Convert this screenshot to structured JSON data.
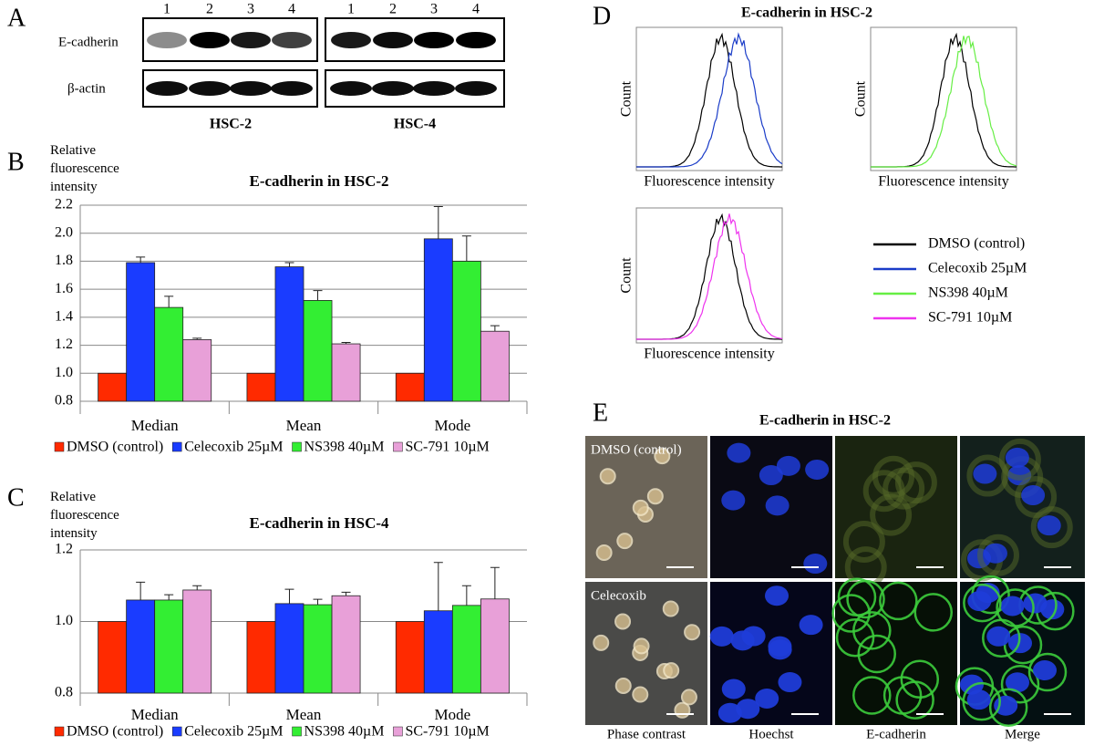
{
  "panel_labels": [
    "A",
    "B",
    "C",
    "D",
    "E"
  ],
  "blot": {
    "lanes": [
      "1",
      "2",
      "3",
      "4"
    ],
    "rows": [
      "E-cadherin",
      "β-actin"
    ],
    "cell_lines": [
      "HSC-2",
      "HSC-4"
    ]
  },
  "chart_data": [
    {
      "type": "bar",
      "title": "E-cadherin in HSC-2",
      "y_label": "Relative fluorescence intensity",
      "categories": [
        "Median",
        "Mean",
        "Mode"
      ],
      "series": [
        {
          "name": "DMSO (control)",
          "color": "#ff2a00",
          "values": [
            1,
            1,
            1
          ]
        },
        {
          "name": "Celecoxib 25µM",
          "color": "#1a3cff",
          "values": [
            1.79,
            1.76,
            1.96
          ],
          "errors": [
            0.04,
            0.03,
            0.23
          ]
        },
        {
          "name": "NS398 40µM",
          "color": "#33ee33",
          "values": [
            1.47,
            1.52,
            1.8
          ],
          "errors": [
            0.08,
            0.07,
            0.18
          ]
        },
        {
          "name": "SC-791 10µM",
          "color": "#e8a0d8",
          "values": [
            1.24,
            1.21,
            1.3
          ],
          "errors": [
            0.01,
            0.01,
            0.04
          ]
        }
      ],
      "ylim": [
        0.8,
        2.2
      ],
      "yticks": [
        0.8,
        {
          "value": 1,
          "label": "1.0"
        },
        1.2,
        1.4,
        1.6,
        1.8,
        {
          "value": 2,
          "label": "2.0"
        },
        2.2
      ],
      "grid": true
    },
    {
      "type": "bar",
      "title": "E-cadherin in HSC-4",
      "y_label": "Relative fluorescence intensity",
      "categories": [
        "Median",
        "Mean",
        "Mode"
      ],
      "series": [
        {
          "name": "DMSO (control)",
          "color": "#ff2a00",
          "values": [
            1,
            1,
            1
          ]
        },
        {
          "name": "Celecoxib 25µM",
          "color": "#1a3cff",
          "values": [
            1.06,
            1.05,
            1.03
          ],
          "errors": [
            0.05,
            0.04,
            0.135
          ]
        },
        {
          "name": "NS398 40µM",
          "color": "#33ee33",
          "values": [
            1.06,
            1.047,
            1.045
          ],
          "errors": [
            0.015,
            0.015,
            0.055
          ]
        },
        {
          "name": "SC-791 10µM",
          "color": "#e8a0d8",
          "values": [
            1.088,
            1.072,
            1.063
          ],
          "errors": [
            0.012,
            0.01,
            0.088
          ]
        }
      ],
      "ylim": [
        0.8,
        1.2
      ],
      "yticks": [
        0.8,
        {
          "value": 1,
          "label": "1.0"
        },
        1.2
      ],
      "grid": true
    }
  ],
  "flow": {
    "title": "E-cadherin in HSC-2",
    "y_label": "Count",
    "x_label": "Fluorescence intensity",
    "legend": [
      {
        "name": "DMSO (control)",
        "color": "#000000"
      },
      {
        "name": "Celecoxib 25µM",
        "color": "#1a3cc8"
      },
      {
        "name": "NS398 40µM",
        "color": "#66ee44"
      },
      {
        "name": "SC-791 10µM",
        "color": "#ee33ee"
      }
    ]
  },
  "imaging": {
    "title": "E-cadherin in HSC-2",
    "rows": [
      "DMSO (control)",
      "Celecoxib"
    ],
    "columns": [
      "Phase contrast",
      "Hoechst",
      "E-cadherin",
      "Merge"
    ]
  }
}
